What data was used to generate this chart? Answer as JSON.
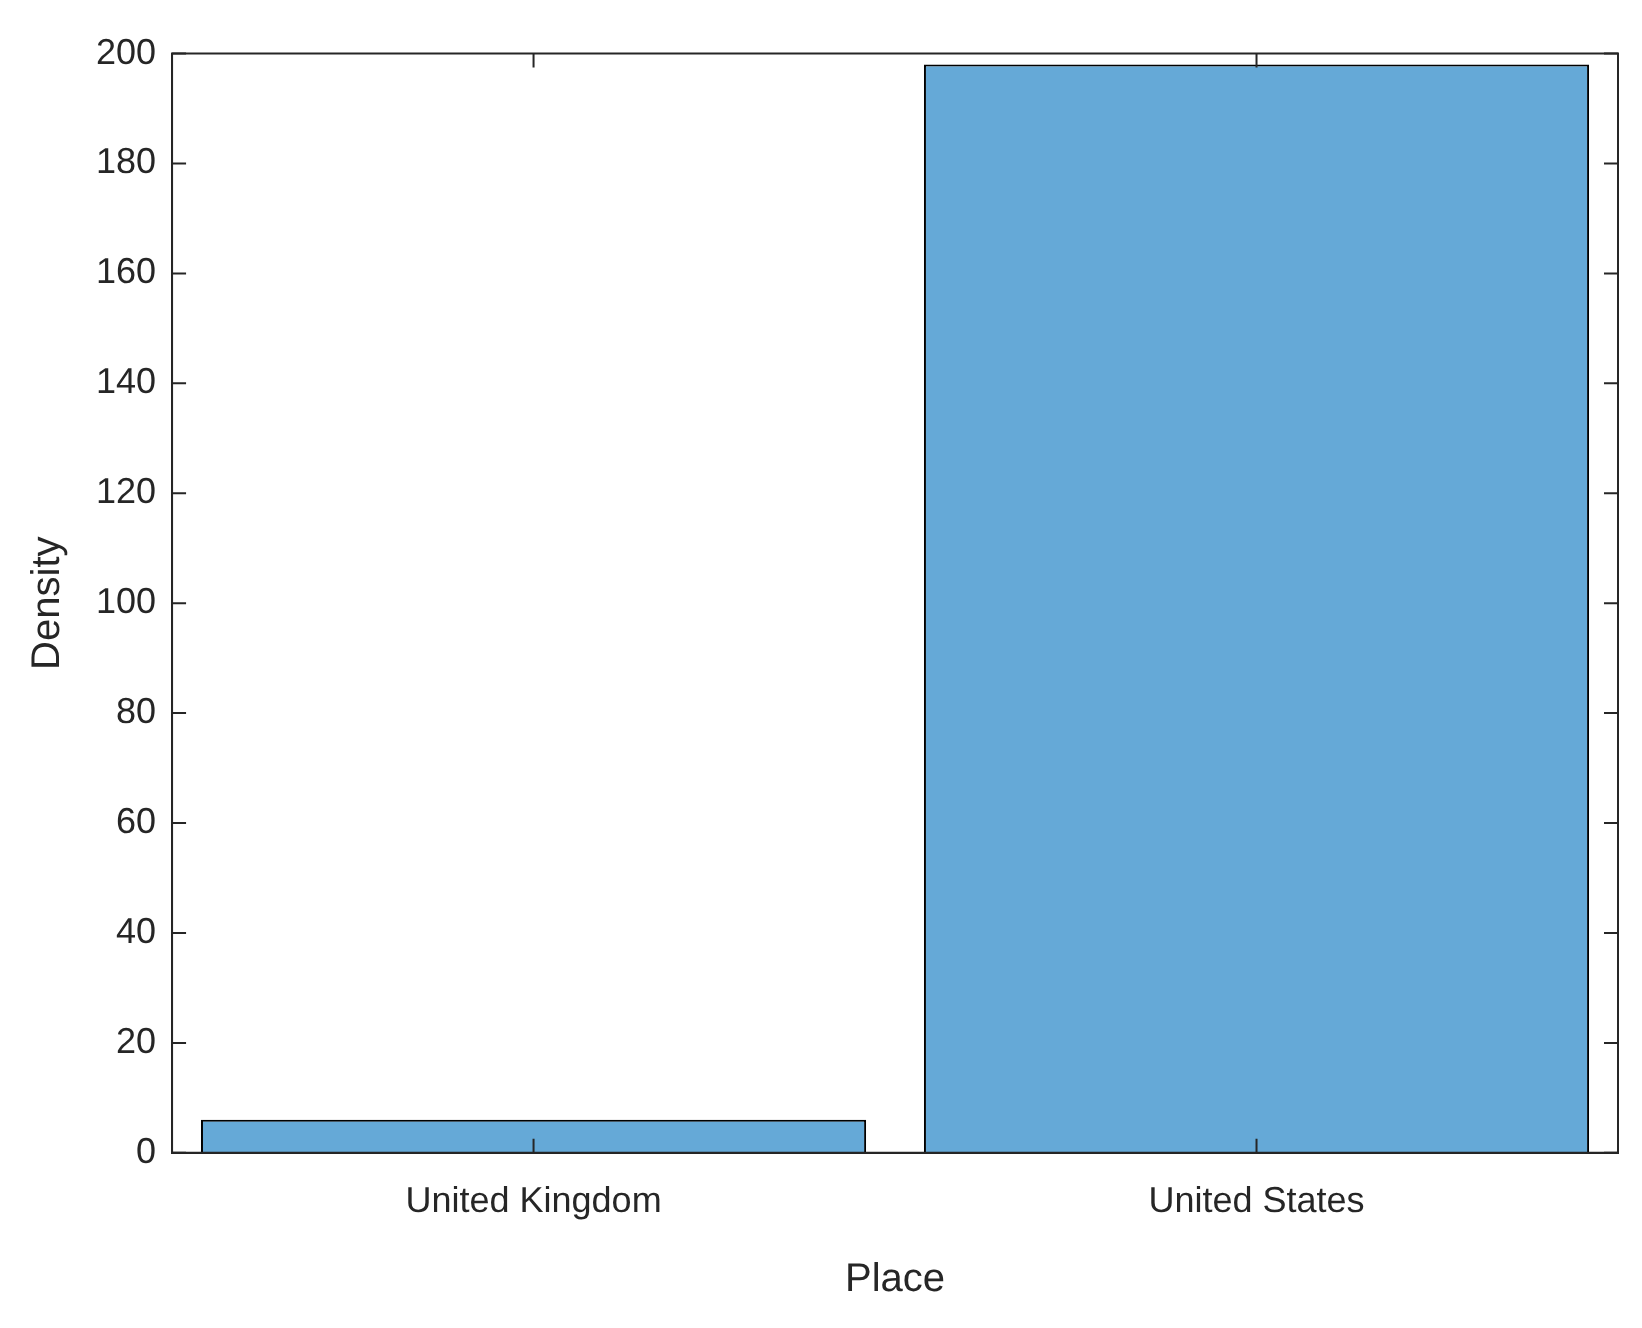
{
  "chart_data": {
    "type": "bar",
    "xlabel": "Place",
    "ylabel": "Density",
    "categories": [
      "United Kingdom",
      "United States"
    ],
    "values": [
      6,
      198
    ],
    "color": "#65a9d7",
    "ylim": [
      0,
      200
    ],
    "yticks": [
      0,
      20,
      40,
      60,
      80,
      100,
      120,
      140,
      160,
      180,
      200
    ],
    "grid": false,
    "legend": false
  }
}
